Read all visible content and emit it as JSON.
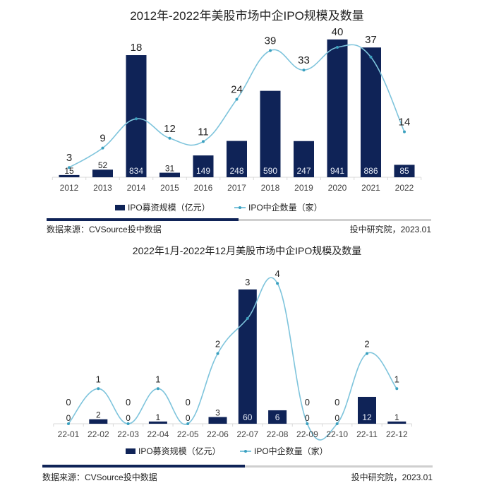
{
  "colors": {
    "bar": "#0f2357",
    "line": "#7ec4dc",
    "marker": "#3aa0bf",
    "rule_dark": "#0f2357",
    "rule_light": "#cfcfcf"
  },
  "chart1": {
    "title": "2012年-2022年美股市场中企IPO规模及数量",
    "legend_bar": "IPO募资规模（亿元）",
    "legend_line": "IPO中企数量（家）",
    "source": "数据来源：CVSource投中数据",
    "credit": "投中研究院，2023.01"
  },
  "chart2": {
    "title": "2022年1月-2022年12月美股市场中企IPO规模及数量",
    "legend_bar": "IPO募资规模（亿元）",
    "legend_line": "IPO中企数量（家）",
    "source": "数据来源：CVSource投中数据",
    "credit": "投中研究院，2023.01"
  },
  "chart_data": [
    {
      "type": "bar+line",
      "title": "2012年-2022年美股市场中企IPO规模及数量",
      "categories": [
        "2012",
        "2013",
        "2014",
        "2015",
        "2016",
        "2017",
        "2018",
        "2019",
        "2020",
        "2021",
        "2022"
      ],
      "series": [
        {
          "name": "IPO募资规模（亿元）",
          "type": "bar",
          "values": [
            15,
            52,
            834,
            31,
            149,
            248,
            590,
            247,
            941,
            886,
            85
          ]
        },
        {
          "name": "IPO中企数量（家）",
          "type": "line",
          "values": [
            3,
            9,
            18,
            12,
            11,
            24,
            39,
            33,
            40,
            37,
            14
          ]
        }
      ],
      "xlabel": "",
      "ylabel": "",
      "grid": false,
      "legend_position": "bottom"
    },
    {
      "type": "bar+line",
      "title": "2022年1月-2022年12月美股市场中企IPO规模及数量",
      "categories": [
        "22-01",
        "22-02",
        "22-03",
        "22-04",
        "22-05",
        "22-06",
        "22-07",
        "22-08",
        "22-09",
        "22-10",
        "22-11",
        "22-12"
      ],
      "series": [
        {
          "name": "IPO募资规模（亿元）",
          "type": "bar",
          "values": [
            0,
            2,
            0,
            1,
            0,
            3,
            60,
            6,
            0,
            0,
            12,
            1
          ]
        },
        {
          "name": "IPO中企数量（家）",
          "type": "line",
          "values": [
            0,
            1,
            0,
            1,
            0,
            2,
            3,
            4,
            0,
            0,
            2,
            1
          ]
        }
      ],
      "xlabel": "",
      "ylabel": "",
      "grid": false,
      "legend_position": "bottom"
    }
  ]
}
